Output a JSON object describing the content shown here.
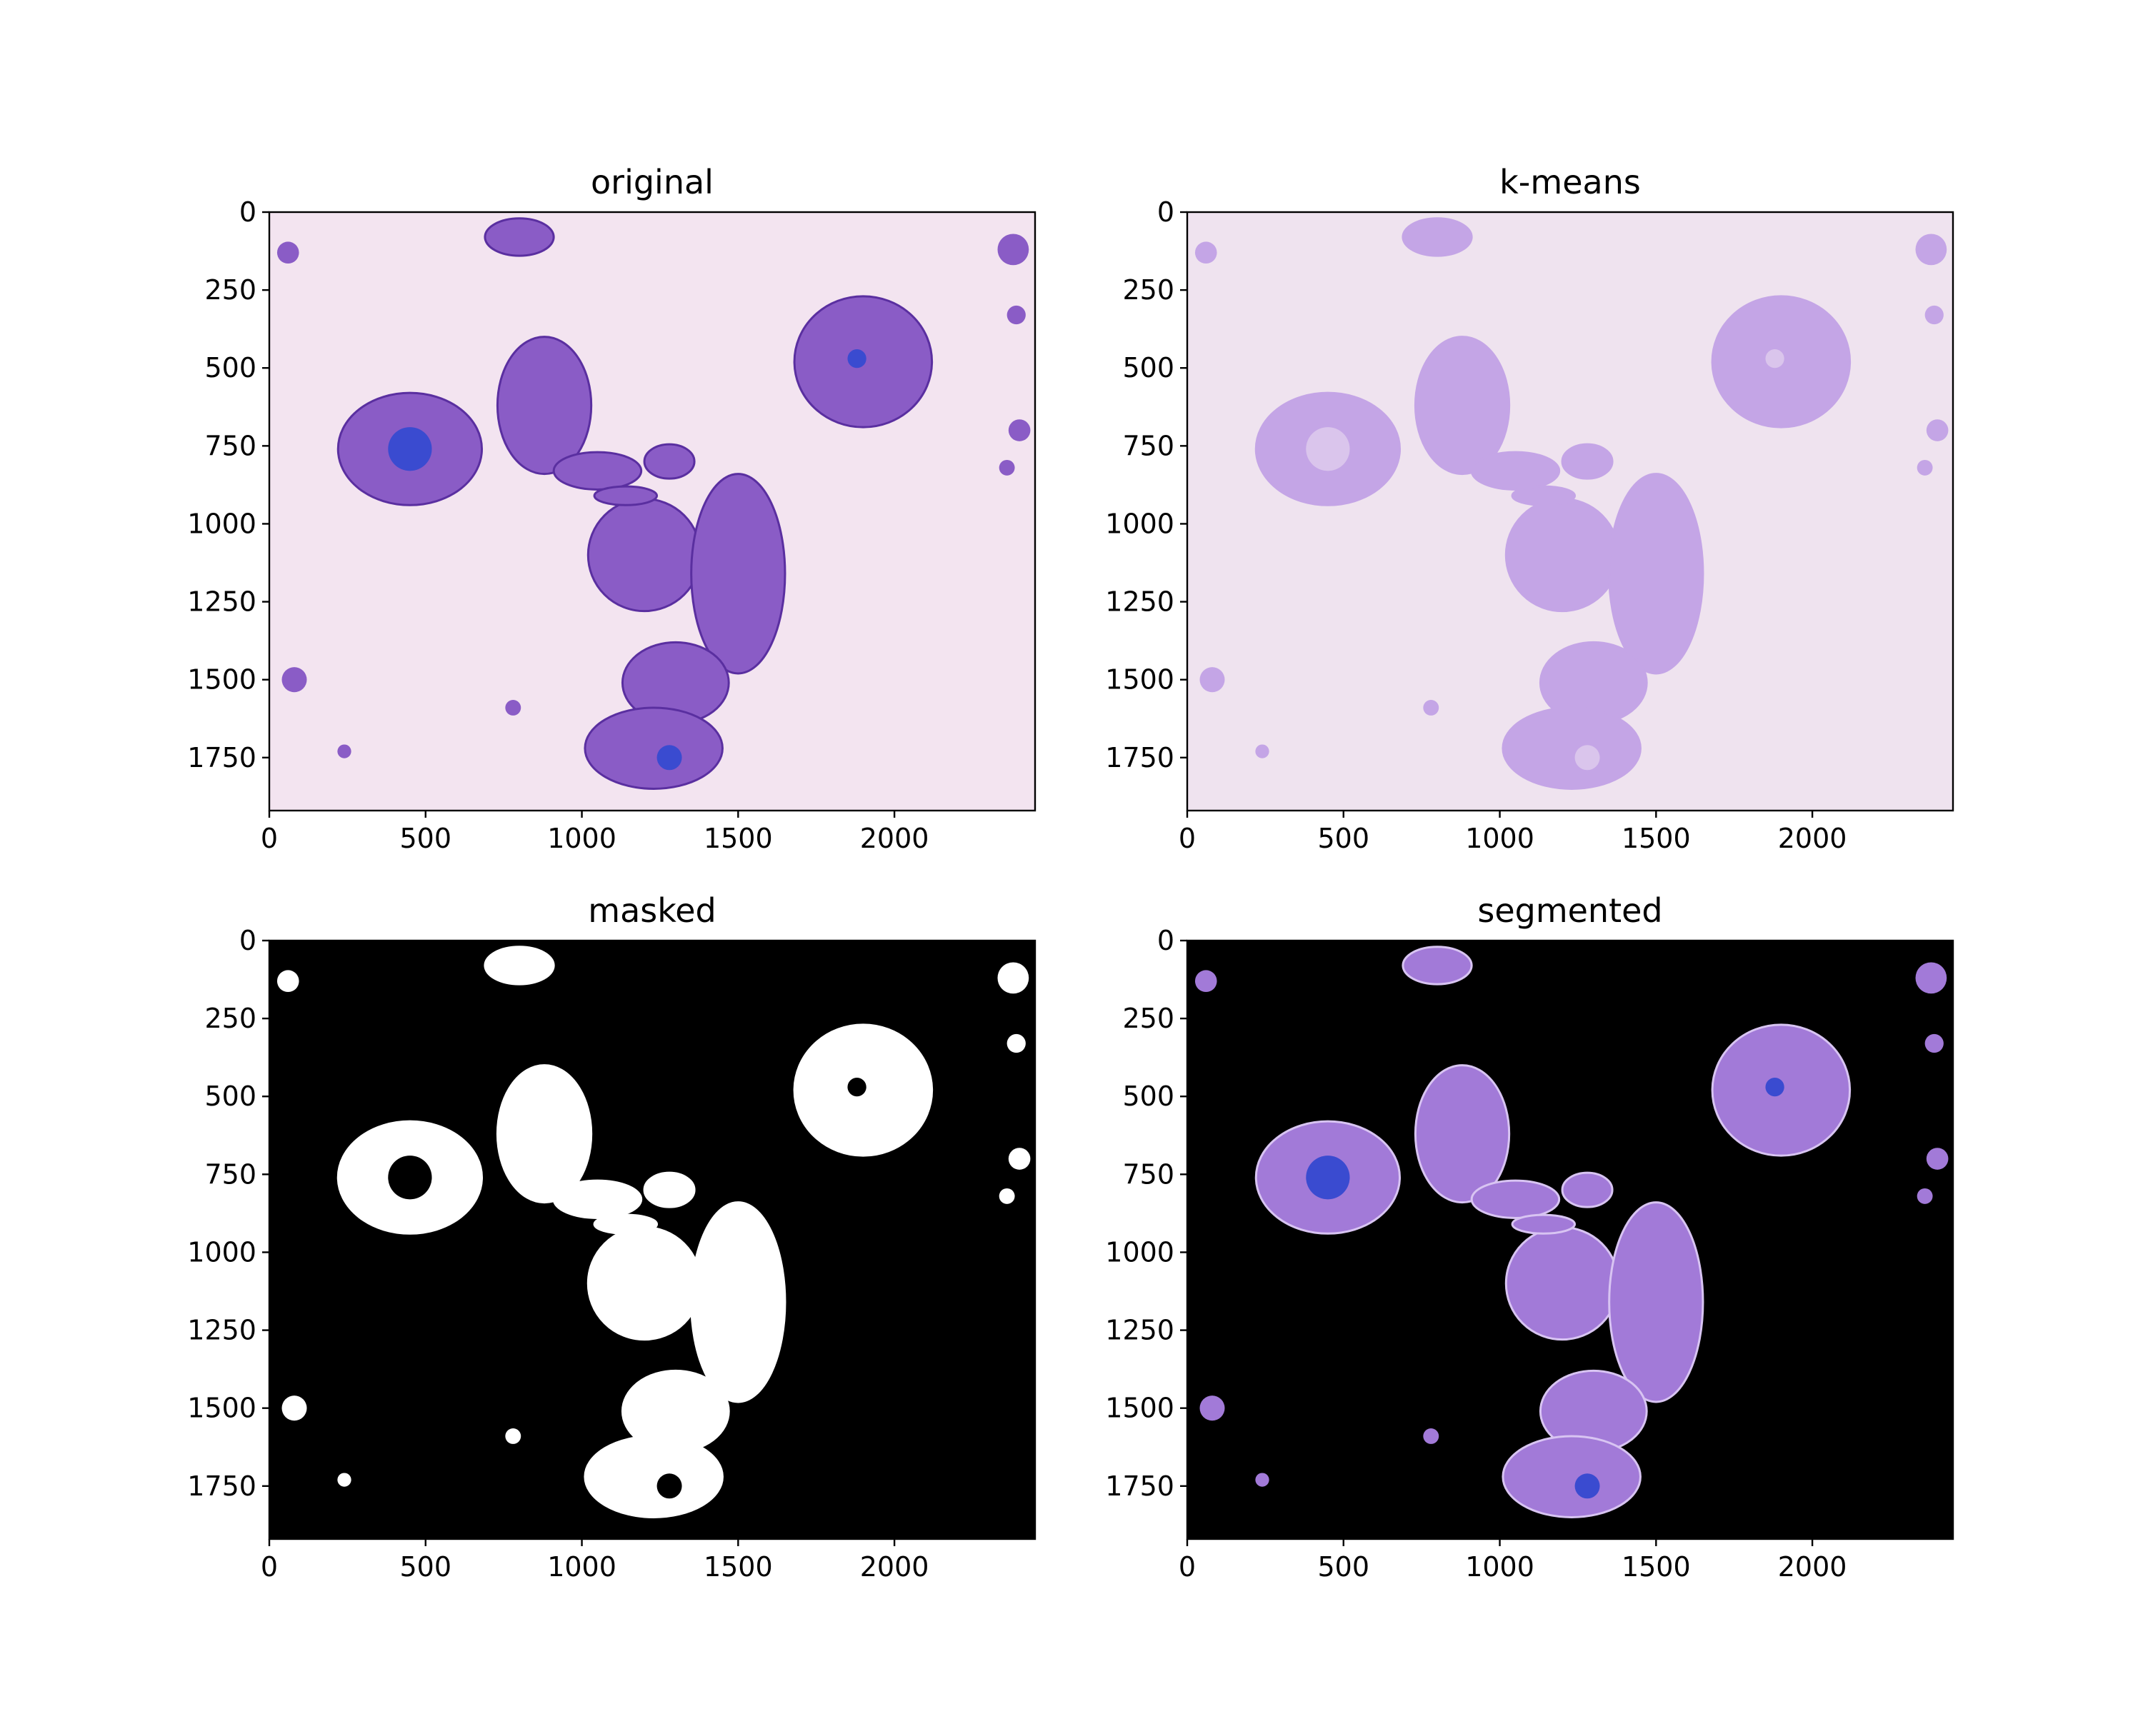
{
  "figure": {
    "background": "#ffffff",
    "panels": [
      {
        "id": "original",
        "title": "original",
        "background": "#f3e4f0",
        "blob_fill": "#8a5cc6",
        "blob_stroke": "#5a2fa0",
        "accent": "#3a4bd0",
        "x_ticks": [
          0,
          500,
          1000,
          1500,
          2000
        ],
        "y_ticks": [
          0,
          250,
          500,
          750,
          1000,
          1250,
          1500,
          1750
        ]
      },
      {
        "id": "kmeans",
        "title": "k-means",
        "background": "#efe3ef",
        "blob_fill": "#c4a5e6",
        "blob_stroke": "#c4a5e6",
        "accent": "#e4d3ee",
        "x_ticks": [
          0,
          500,
          1000,
          1500,
          2000
        ],
        "y_ticks": [
          0,
          250,
          500,
          750,
          1000,
          1250,
          1500,
          1750
        ]
      },
      {
        "id": "masked",
        "title": "masked",
        "background": "#000000",
        "blob_fill": "#ffffff",
        "blob_stroke": "#ffffff",
        "accent": "#ffffff",
        "x_ticks": [
          0,
          500,
          1000,
          1500,
          2000
        ],
        "y_ticks": [
          0,
          250,
          500,
          750,
          1000,
          1250,
          1500,
          1750
        ]
      },
      {
        "id": "segmented",
        "title": "segmented",
        "background": "#000000",
        "blob_fill": "#a27ad8",
        "blob_stroke": "#d8c4f2",
        "accent": "#3a4bd0",
        "x_ticks": [
          0,
          500,
          1000,
          1500,
          2000
        ],
        "y_ticks": [
          0,
          250,
          500,
          750,
          1000,
          1250,
          1500,
          1750
        ]
      }
    ]
  }
}
